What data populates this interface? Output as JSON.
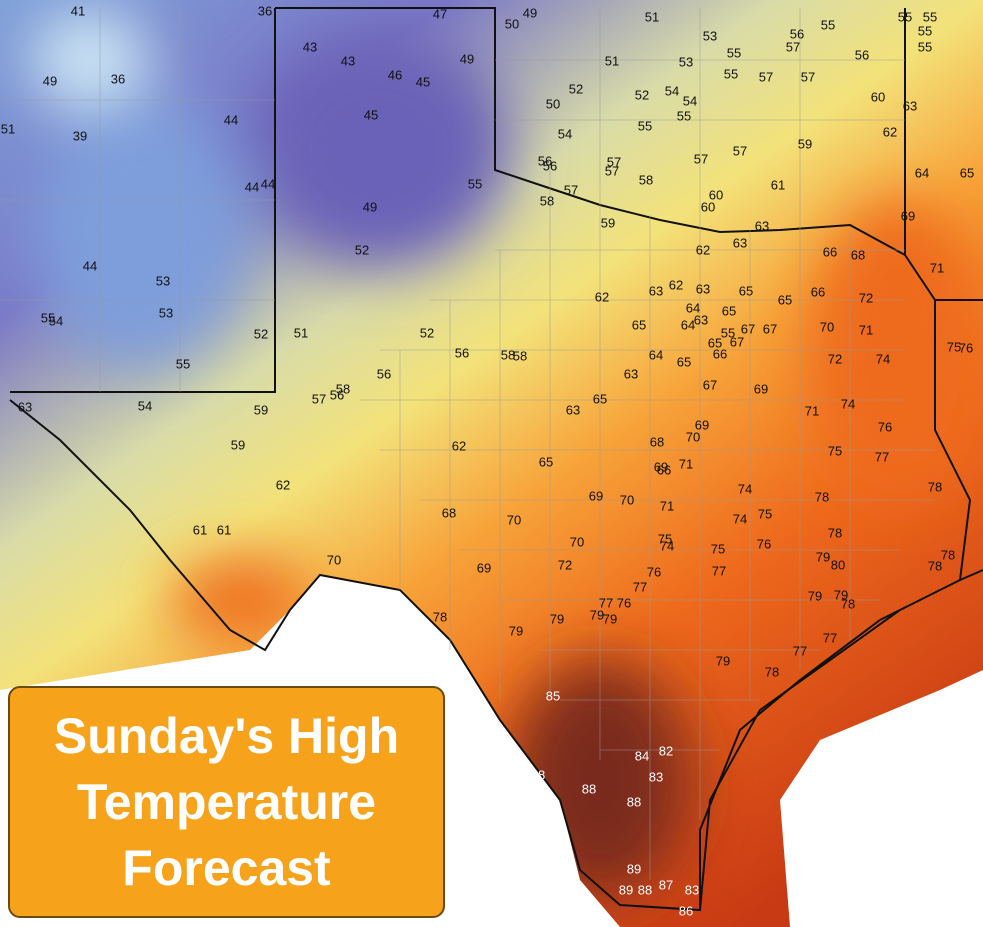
{
  "title": [
    "Sunday's High",
    "Temperature",
    "Forecast"
  ],
  "temps": [
    41,
    36,
    47,
    50,
    49,
    51,
    53,
    56,
    55,
    57,
    55,
    55,
    55,
    55,
    43,
    43,
    46,
    45,
    49,
    49,
    36,
    51,
    53,
    55,
    55,
    57,
    57,
    56,
    52,
    50,
    52,
    54,
    54,
    55,
    60,
    63,
    51,
    39,
    44,
    45,
    54,
    55,
    57,
    59,
    62,
    56,
    56,
    57,
    57,
    58,
    57,
    61,
    64,
    65,
    44,
    44,
    55,
    57,
    58,
    60,
    60,
    49,
    59,
    63,
    63,
    62,
    69,
    52,
    66,
    68,
    71,
    44,
    53,
    63,
    62,
    63,
    65,
    66,
    72,
    62,
    53,
    55,
    54,
    64,
    65,
    65,
    65,
    64,
    63,
    55,
    65,
    67,
    67,
    70,
    71,
    75,
    76,
    52,
    51,
    52,
    56,
    58,
    58,
    64,
    65,
    67,
    66,
    72,
    74,
    55,
    56,
    63,
    58,
    57,
    56,
    67,
    69,
    63,
    54,
    59,
    65,
    63,
    71,
    74,
    69,
    70,
    76,
    68,
    59,
    62,
    75,
    77,
    65,
    69,
    71,
    66,
    62,
    69,
    70,
    71,
    74,
    78,
    78,
    68,
    70,
    74,
    75,
    61,
    61,
    78,
    70,
    75,
    74,
    75,
    76,
    79,
    80,
    78,
    70,
    69,
    72,
    76,
    77,
    78,
    77,
    79,
    79,
    78,
    77,
    76,
    79,
    79,
    78,
    79,
    79,
    77,
    77,
    79,
    78,
    85,
    84,
    82,
    83,
    88,
    88,
    88,
    89,
    89,
    88,
    87,
    83,
    86
  ]
}
